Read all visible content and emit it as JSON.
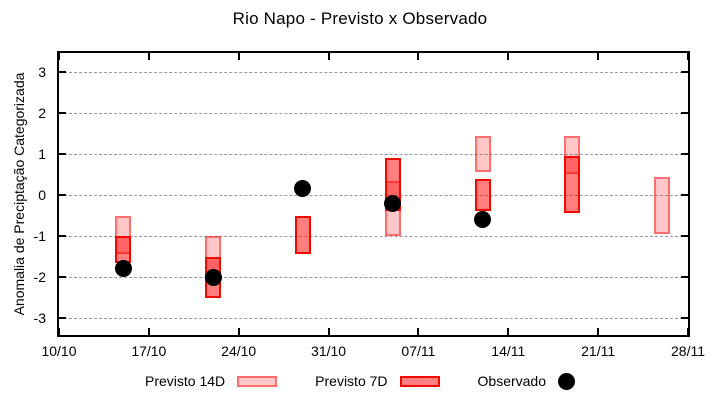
{
  "title": "Rio Napo - Previsto x Observado",
  "axes": {
    "ylabel": "Anomalia de Preciptação Categorizada"
  },
  "legend": {
    "items": [
      {
        "label": "Previsto 14D",
        "swatch": "light-red-box"
      },
      {
        "label": "Previsto 7D",
        "swatch": "dark-red-box"
      },
      {
        "label": "Observado",
        "swatch": "black-dot"
      }
    ]
  },
  "colors": {
    "forecast_14d_fill": "rgba(255,0,0,0.22)",
    "forecast_14d_border": "rgba(255,0,0,0.45)",
    "forecast_7d_fill": "rgba(255,0,0,0.50)",
    "forecast_7d_border": "#f00a00",
    "observed": "#000000",
    "grid": "#999999",
    "axis": "#000000"
  },
  "chart_data": {
    "type": "bar",
    "subtype": "floating-range-boxes-with-observed-points",
    "title": "Rio Napo - Previsto x Observado",
    "xlabel": "",
    "ylabel": "Anomalia de Preciptação Categorizada",
    "ylim": [
      -3.5,
      3.5
    ],
    "x_days_range": [
      0,
      49
    ],
    "grid": "horizontal-dashed",
    "legend_position": "bottom-center",
    "x_ticks": [
      {
        "day": 0,
        "label": "10/10"
      },
      {
        "day": 7,
        "label": "17/10"
      },
      {
        "day": 14,
        "label": "24/10"
      },
      {
        "day": 21,
        "label": "31/10"
      },
      {
        "day": 28,
        "label": "07/11"
      },
      {
        "day": 35,
        "label": "14/11"
      },
      {
        "day": 42,
        "label": "21/11"
      },
      {
        "day": 49,
        "label": "28/11"
      }
    ],
    "y_ticks": [
      3,
      2,
      1,
      0,
      -1,
      -2,
      -3
    ],
    "series": [
      {
        "name": "Previsto 14D",
        "mark": "range-box",
        "points": [
          {
            "day": 5,
            "date": "15/10",
            "low": -1.45,
            "high": -0.5
          },
          {
            "day": 12,
            "date": "22/10",
            "low": -2.0,
            "high": -1.0
          },
          {
            "day": 26,
            "date": "05/11",
            "low": -1.0,
            "high": 0.35
          },
          {
            "day": 33,
            "date": "12/11",
            "low": 0.55,
            "high": 1.45
          },
          {
            "day": 40,
            "date": "19/11",
            "low": 0.5,
            "high": 1.45
          },
          {
            "day": 47,
            "date": "26/11",
            "low": -0.95,
            "high": 0.45
          }
        ]
      },
      {
        "name": "Previsto 7D",
        "mark": "range-box",
        "points": [
          {
            "day": 5,
            "date": "15/10",
            "low": -1.65,
            "high": -1.0
          },
          {
            "day": 12,
            "date": "22/10",
            "low": -2.5,
            "high": -1.5
          },
          {
            "day": 19,
            "date": "29/10",
            "low": -1.45,
            "high": -0.5
          },
          {
            "day": 26,
            "date": "05/11",
            "low": -0.4,
            "high": 0.9
          },
          {
            "day": 33,
            "date": "12/11",
            "low": -0.4,
            "high": 0.4
          },
          {
            "day": 40,
            "date": "19/11",
            "low": -0.45,
            "high": 0.95
          }
        ]
      },
      {
        "name": "Observado",
        "mark": "point",
        "points": [
          {
            "day": 5,
            "date": "15/10",
            "value": -1.8
          },
          {
            "day": 12,
            "date": "22/10",
            "value": -2.0
          },
          {
            "day": 19,
            "date": "29/10",
            "value": 0.15
          },
          {
            "day": 26,
            "date": "05/11",
            "value": -0.2
          },
          {
            "day": 33,
            "date": "12/11",
            "value": -0.6
          }
        ]
      }
    ]
  }
}
